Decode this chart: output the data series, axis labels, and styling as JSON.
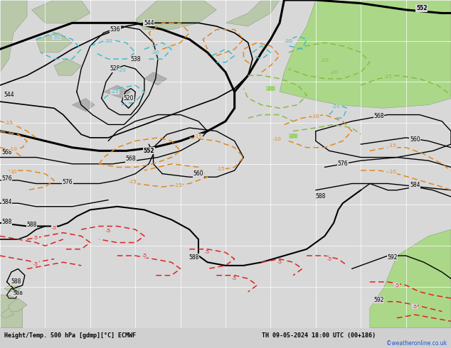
{
  "title": "Height/Temp. 500 hPa [gdmp][°C] ECMWF",
  "date_label": "TH 09-05-2024 18:00 UTC (00+186)",
  "watermark": "©weatheronline.co.uk",
  "bg_color": "#c8c8c8",
  "map_bg": "#d8d8d8",
  "ocean_color": "#d8d8d8",
  "land_color": "#b8c8a8",
  "grid_color": "#ffffff",
  "bottom_bar_color": "#d0d0d0",
  "z500_color": "#000000",
  "temp_warm_color": "#e08820",
  "temp_green_color": "#88bb44",
  "temp_cold_color": "#dd2222",
  "temp_blue_color": "#44bbcc",
  "green_fill_color": "#aad888",
  "cyan_fill_color": "#66cccc",
  "figsize": [
    6.34,
    4.9
  ],
  "dpi": 100
}
